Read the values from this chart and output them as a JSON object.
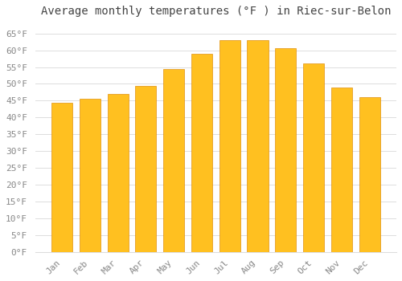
{
  "title": "Average monthly temperatures (°F ) in Riec-sur-Belon",
  "months": [
    "Jan",
    "Feb",
    "Mar",
    "Apr",
    "May",
    "Jun",
    "Jul",
    "Aug",
    "Sep",
    "Oct",
    "Nov",
    "Dec"
  ],
  "values": [
    44.5,
    45.5,
    47,
    49.5,
    54.5,
    59,
    63,
    63,
    60.5,
    56,
    49,
    46
  ],
  "bar_color": "#FFC020",
  "bar_edge_color": "#E09010",
  "background_color": "#FFFFFF",
  "grid_color": "#DDDDDD",
  "ylim": [
    0,
    68
  ],
  "yticks": [
    0,
    5,
    10,
    15,
    20,
    25,
    30,
    35,
    40,
    45,
    50,
    55,
    60,
    65
  ],
  "title_fontsize": 10,
  "tick_fontsize": 8,
  "tick_color": "#888888",
  "title_color": "#444444",
  "font_family": "monospace",
  "bar_width": 0.75
}
